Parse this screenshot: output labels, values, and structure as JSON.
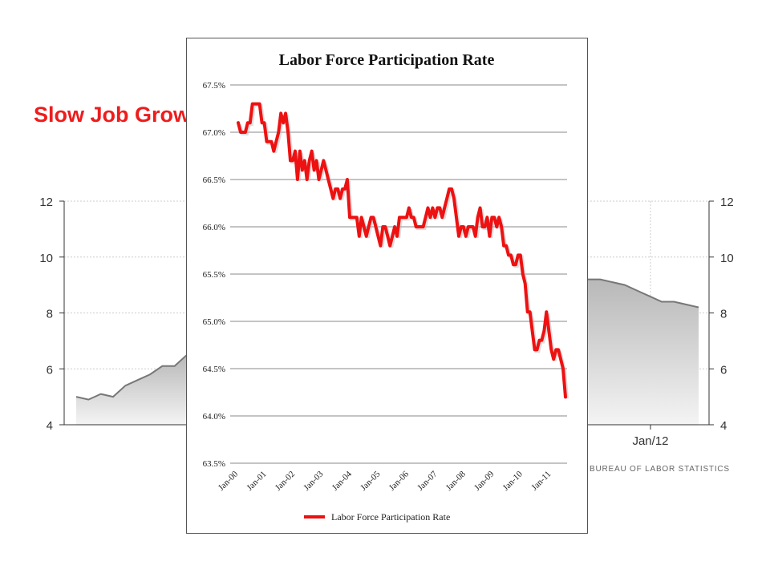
{
  "slide": {
    "title": "Slow Job Growth and Labor Force Participation"
  },
  "background_chart": {
    "source": "BUREAU OF LABOR STATISTICS",
    "x_tick_visible": "Jan/12",
    "colors": {
      "line": "#777777",
      "fill_top": "#b8b8b8",
      "fill_bottom": "#f4f4f4"
    }
  },
  "chart_data": [
    {
      "type": "area",
      "title": "",
      "xlabel": "",
      "ylabel": "",
      "ylim": [
        4,
        12
      ],
      "y_ticks": [
        4,
        6,
        8,
        10,
        12
      ],
      "x_tick_labels": [
        "Jan/12"
      ],
      "grid": true,
      "visible_points_left": [
        5.0,
        4.9,
        5.1,
        5.0,
        5.4,
        5.6,
        5.8,
        6.1,
        6.1,
        6.5
      ],
      "visible_points_right": [
        9.2,
        9.2,
        9.1,
        9.0,
        8.8,
        8.6,
        8.4,
        8.4,
        8.3,
        8.2
      ]
    },
    {
      "type": "line",
      "title": "Labor Force Participation Rate",
      "xlabel": "",
      "ylabel": "",
      "ylim": [
        63.5,
        67.5
      ],
      "y_ticks": [
        "63.5%",
        "64.0%",
        "64.5%",
        "65.0%",
        "65.5%",
        "66.0%",
        "66.5%",
        "67.0%",
        "67.5%"
      ],
      "x_tick_labels": [
        "Jan-00",
        "Jan-01",
        "Jan-02",
        "Jan-03",
        "Jan-04",
        "Jan-05",
        "Jan-06",
        "Jan-07",
        "Jan-08",
        "Jan-09",
        "Jan-10",
        "Jan-11"
      ],
      "grid": true,
      "legend_position": "bottom",
      "series": [
        {
          "name": "Labor Force Participation Rate",
          "color": "#ee1111",
          "x_start": "Jan-00",
          "frequency": "monthly",
          "values": [
            67.1,
            67.0,
            67.0,
            67.0,
            67.1,
            67.1,
            67.3,
            67.3,
            67.3,
            67.3,
            67.1,
            67.1,
            66.9,
            66.9,
            66.9,
            66.8,
            66.9,
            67.0,
            67.2,
            67.1,
            67.2,
            67.0,
            66.7,
            66.7,
            66.8,
            66.5,
            66.8,
            66.6,
            66.7,
            66.5,
            66.7,
            66.8,
            66.6,
            66.7,
            66.5,
            66.6,
            66.7,
            66.6,
            66.5,
            66.4,
            66.3,
            66.4,
            66.4,
            66.3,
            66.4,
            66.4,
            66.5,
            66.1,
            66.1,
            66.1,
            66.1,
            65.9,
            66.1,
            66.0,
            65.9,
            66.0,
            66.1,
            66.1,
            66.0,
            65.9,
            65.8,
            66.0,
            66.0,
            65.9,
            65.8,
            65.9,
            66.0,
            65.9,
            66.1,
            66.1,
            66.1,
            66.1,
            66.2,
            66.1,
            66.1,
            66.0,
            66.0,
            66.0,
            66.0,
            66.1,
            66.2,
            66.1,
            66.2,
            66.1,
            66.2,
            66.2,
            66.1,
            66.2,
            66.3,
            66.4,
            66.4,
            66.3,
            66.1,
            65.9,
            66.0,
            66.0,
            65.9,
            66.0,
            66.0,
            66.0,
            65.9,
            66.1,
            66.2,
            66.0,
            66.0,
            66.1,
            65.9,
            66.1,
            66.1,
            66.0,
            66.1,
            66.0,
            65.8,
            65.8,
            65.7,
            65.7,
            65.6,
            65.6,
            65.7,
            65.7,
            65.5,
            65.4,
            65.1,
            65.1,
            64.9,
            64.7,
            64.7,
            64.8,
            64.8,
            64.9,
            65.1,
            64.9,
            64.7,
            64.6,
            64.7,
            64.7,
            64.6,
            64.5,
            64.2
          ]
        }
      ]
    }
  ]
}
